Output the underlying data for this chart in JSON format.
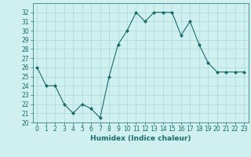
{
  "x": [
    0,
    1,
    2,
    3,
    4,
    5,
    6,
    7,
    8,
    9,
    10,
    11,
    12,
    13,
    14,
    15,
    16,
    17,
    18,
    19,
    20,
    21,
    22,
    23
  ],
  "y": [
    26,
    24,
    24,
    22,
    21,
    22,
    21.5,
    20.5,
    25,
    28.5,
    30,
    32,
    31,
    32,
    32,
    32,
    29.5,
    31,
    28.5,
    26.5,
    25.5,
    25.5,
    25.5,
    25.5
  ],
  "line_color": "#1a6b6b",
  "marker": "D",
  "marker_size": 2,
  "bg_color": "#d0f0f0",
  "grid_color": "#a8d8d8",
  "xlabel": "Humidex (Indice chaleur)",
  "ylim": [
    20,
    33
  ],
  "yticks": [
    20,
    21,
    22,
    23,
    24,
    25,
    26,
    27,
    28,
    29,
    30,
    31,
    32
  ],
  "xticks": [
    0,
    1,
    2,
    3,
    4,
    5,
    6,
    7,
    8,
    9,
    10,
    11,
    12,
    13,
    14,
    15,
    16,
    17,
    18,
    19,
    20,
    21,
    22,
    23
  ],
  "xlim": [
    -0.5,
    23.5
  ],
  "tick_fontsize": 5.5,
  "xlabel_fontsize": 6.5
}
